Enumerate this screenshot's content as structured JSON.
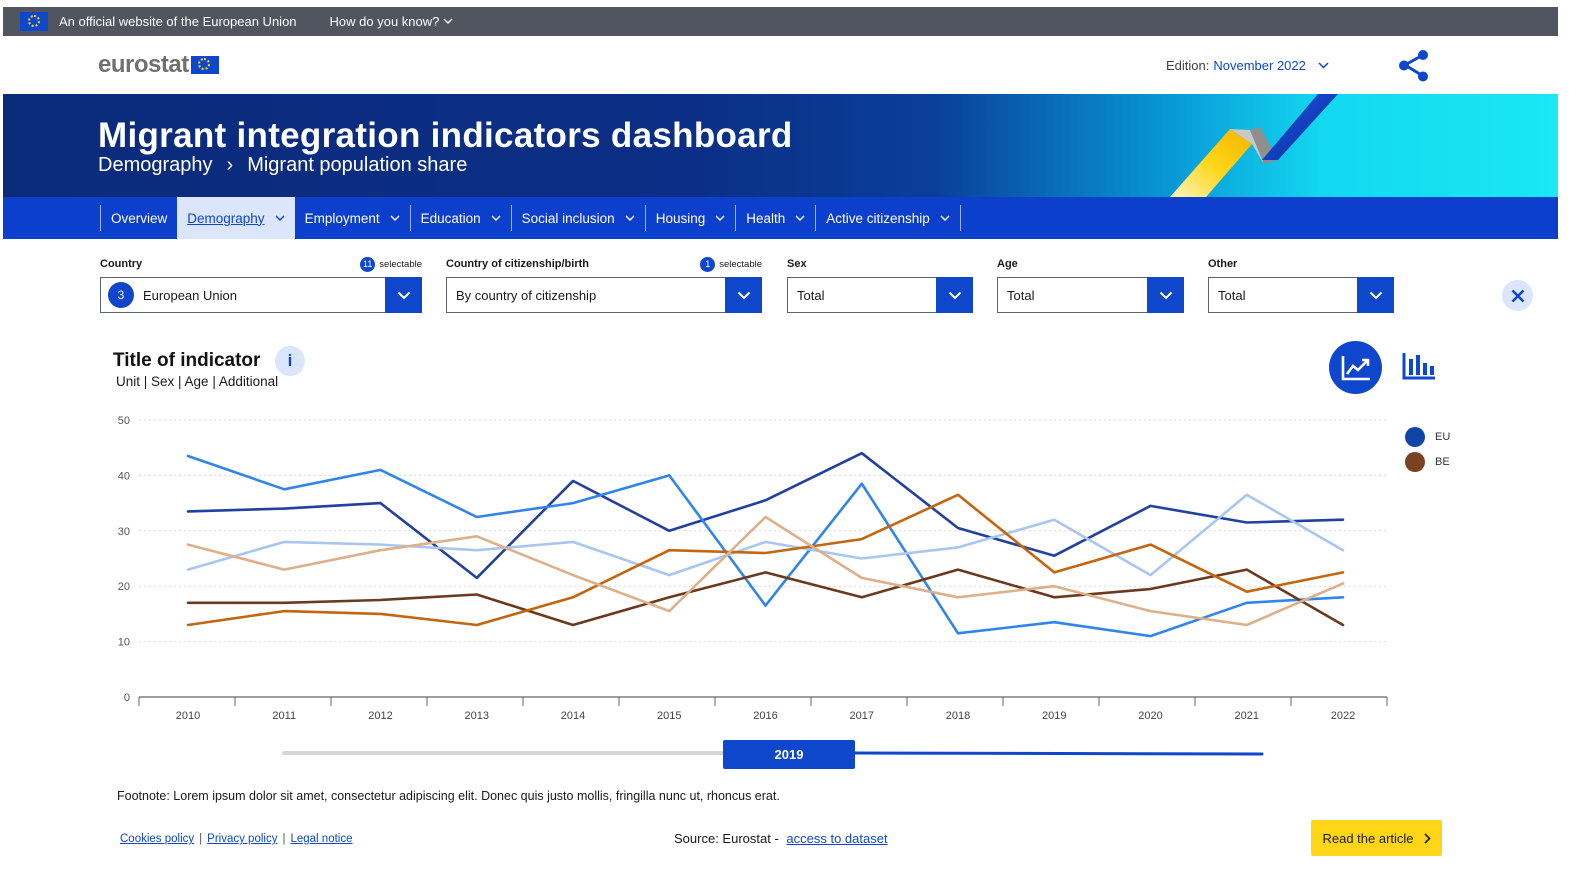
{
  "eu_bar": {
    "official_text": "An official website of the European Union",
    "how_text": "How do you know?"
  },
  "header": {
    "logo_text": "eurostat",
    "edition_label": "Edition:",
    "edition_value": "November 2022"
  },
  "banner": {
    "title": "Migrant integration indicators dashboard",
    "breadcrumb": [
      "Demography",
      "Migrant population share"
    ]
  },
  "nav": {
    "items": [
      {
        "label": "Overview"
      },
      {
        "label": "Demography",
        "active": true
      },
      {
        "label": "Employment"
      },
      {
        "label": "Education"
      },
      {
        "label": "Social inclusion"
      },
      {
        "label": "Housing"
      },
      {
        "label": "Health"
      },
      {
        "label": "Active citizenship"
      }
    ]
  },
  "filters": {
    "country": {
      "label": "Country",
      "selectable_count": "11",
      "selectable_text": "selectable",
      "selected_count": "3",
      "value": "European Union"
    },
    "citizenship": {
      "label": "Country of citizenship/birth",
      "selectable_count": "1",
      "selectable_text": "selectable",
      "value": "By country of citizenship"
    },
    "sex": {
      "label": "Sex",
      "value": "Total"
    },
    "age": {
      "label": "Age",
      "value": "Total"
    },
    "other": {
      "label": "Other",
      "value": "Total"
    }
  },
  "chart_header": {
    "title": "Title of indicator",
    "info": "i",
    "subtitle": "Unit | Sex | Age | Additional"
  },
  "legend": [
    {
      "name": "EU",
      "color": "#1045a8"
    },
    {
      "name": "BE",
      "color": "#7a4220"
    }
  ],
  "year_slider": {
    "value": "2019",
    "min": 2010,
    "max": 2022
  },
  "chart_data": {
    "type": "line",
    "x": [
      2010,
      2011,
      2012,
      2013,
      2014,
      2015,
      2016,
      2017,
      2018,
      2019,
      2020,
      2021,
      2022
    ],
    "ylim": [
      0,
      50
    ],
    "yticks": [
      0,
      10,
      20,
      30,
      40,
      50
    ],
    "grid": true,
    "legend_position": "right",
    "series": [
      {
        "color": "#22409e",
        "values": [
          33.5,
          34,
          35,
          21.5,
          39,
          30,
          35.5,
          44,
          30.5,
          25.5,
          34.5,
          31.5,
          32
        ]
      },
      {
        "color": "#2f86e8",
        "values": [
          43.5,
          37.5,
          41,
          32.5,
          35,
          40,
          16.5,
          38.5,
          11.5,
          13.5,
          11,
          17,
          18
        ]
      },
      {
        "color": "#a9c6f0",
        "values": [
          23,
          28,
          27.5,
          26.5,
          28,
          22,
          28,
          25,
          27,
          32,
          22,
          36.5,
          26.5
        ]
      },
      {
        "color": "#6b3a1e",
        "values": [
          17,
          17,
          17.5,
          18.5,
          13,
          18,
          22.5,
          18,
          23,
          18,
          19.5,
          23,
          13
        ]
      },
      {
        "color": "#c4660f",
        "values": [
          13,
          15.5,
          15,
          13,
          18,
          26.5,
          26,
          28.5,
          36.5,
          22.5,
          27.5,
          19,
          22.5
        ]
      },
      {
        "color": "#deb08a",
        "values": [
          27.5,
          23,
          26.5,
          29,
          22,
          15.5,
          32.5,
          21.5,
          18,
          20,
          15.5,
          13,
          20.5
        ]
      }
    ]
  },
  "footnote": "Footnote: Lorem ipsum dolor sit amet, consectetur adipiscing elit. Donec quis justo mollis, fringilla nunc ut, rhoncus erat.",
  "footer": {
    "links": [
      "Cookies policy",
      "Privacy policy",
      "Legal notice"
    ],
    "source_label": "Source: Eurostat -",
    "source_link": "access to dataset",
    "read_button": "Read the article"
  }
}
